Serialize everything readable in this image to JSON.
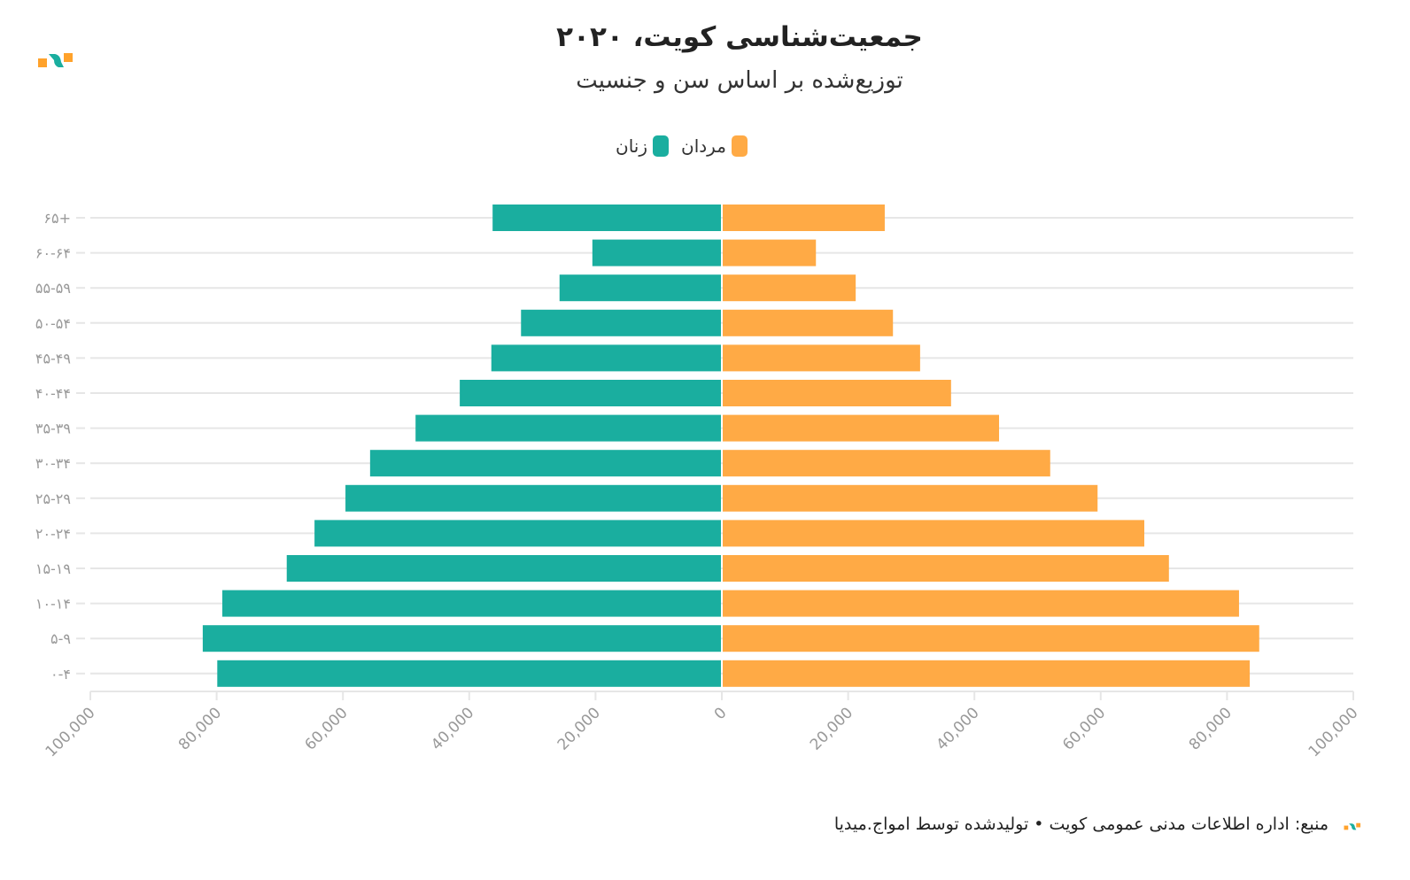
{
  "header": {
    "title": "جمعیت‌شناسی کویت، ۲۰۲۰",
    "subtitle": "توزیع‌شده بر اساس سن و جنسیت"
  },
  "colors": {
    "women": "#1aae9f",
    "men": "#ffaa45",
    "grid": "#e6e6e6",
    "tick": "#999999"
  },
  "chart_data": {
    "type": "bar",
    "orientation": "horizontal-population-pyramid",
    "title": "جمعیت‌شناسی کویت، ۲۰۲۰",
    "subtitle": "توزیع‌شده بر اساس سن و جنسیت",
    "categories": [
      "۶۵+",
      "۶۰-۶۴",
      "۵۵-۵۹",
      "۵۰-۵۴",
      "۴۵-۴۹",
      "۴۰-۴۴",
      "۳۵-۳۹",
      "۳۰-۳۴",
      "۲۵-۲۹",
      "۲۰-۲۴",
      "۱۵-۱۹",
      "۱۰-۱۴",
      "۵-۹",
      "۰-۴"
    ],
    "series": [
      {
        "name": "زنان",
        "side": "left",
        "values": [
          36300,
          20500,
          25700,
          31800,
          36500,
          41500,
          48500,
          55700,
          59600,
          64500,
          68900,
          79100,
          82200,
          79900
        ]
      },
      {
        "name": "مردان",
        "side": "right",
        "values": [
          25800,
          14900,
          21200,
          27100,
          31400,
          36300,
          43900,
          52000,
          59500,
          66900,
          70800,
          81900,
          85100,
          83600
        ]
      }
    ],
    "xlim": [
      -100000,
      100000
    ],
    "x_ticks": [
      "100,000",
      "80,000",
      "60,000",
      "40,000",
      "20,000",
      "0",
      "20,000",
      "40,000",
      "60,000",
      "80,000",
      "100,000"
    ],
    "x_tick_values": [
      -100000,
      -80000,
      -60000,
      -40000,
      -20000,
      0,
      20000,
      40000,
      60000,
      80000,
      100000
    ],
    "legend_placement": "top-center",
    "grid": true
  },
  "footer": {
    "source": "منبع: اداره اطلاعات مدنی عمومی کویت • تولیدشده توسط امواج.میدیا"
  }
}
